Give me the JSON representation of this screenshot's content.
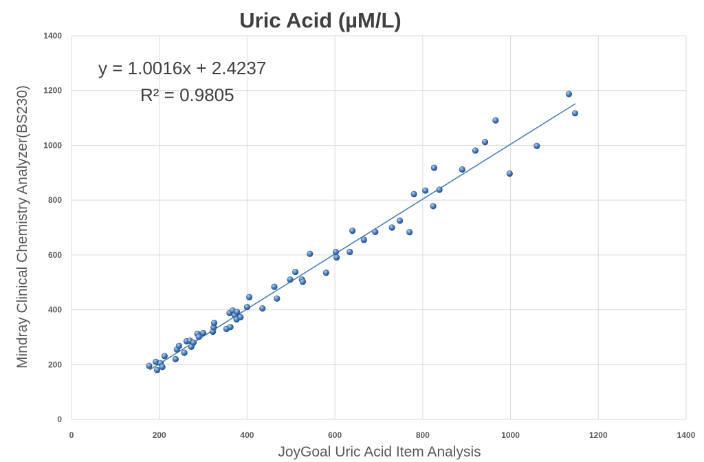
{
  "chart_data": {
    "type": "scatter",
    "title": "Uric Acid (µM/L)",
    "xlabel": "JoyGoal Uric Acid Item Analysis",
    "ylabel": "Mindray Clinical Chemistry Analyzer(BS230)",
    "xlim": [
      0,
      1400
    ],
    "ylim": [
      0,
      1400
    ],
    "x_ticks": [
      "0",
      "200",
      "400",
      "600",
      "800",
      "1000",
      "1200",
      "1400"
    ],
    "y_ticks": [
      "0",
      "200",
      "400",
      "600",
      "800",
      "1000",
      "1200",
      "1400"
    ],
    "grid": true,
    "legend": "none",
    "point_color": "#4f81bd",
    "trendline": {
      "equation": "y = 1.0016x + 2.4237",
      "r_squared": "R² = 0.9805",
      "slope": 1.0016,
      "intercept": 2.4237,
      "x_range": [
        178,
        1148
      ]
    },
    "points": [
      {
        "x": 177,
        "y": 195
      },
      {
        "x": 192,
        "y": 210
      },
      {
        "x": 195,
        "y": 180
      },
      {
        "x": 203,
        "y": 205
      },
      {
        "x": 207,
        "y": 191
      },
      {
        "x": 212,
        "y": 231
      },
      {
        "x": 237,
        "y": 220
      },
      {
        "x": 240,
        "y": 255
      },
      {
        "x": 245,
        "y": 268
      },
      {
        "x": 257,
        "y": 243
      },
      {
        "x": 262,
        "y": 285
      },
      {
        "x": 270,
        "y": 287
      },
      {
        "x": 273,
        "y": 265
      },
      {
        "x": 278,
        "y": 280
      },
      {
        "x": 287,
        "y": 312
      },
      {
        "x": 290,
        "y": 301
      },
      {
        "x": 300,
        "y": 315
      },
      {
        "x": 322,
        "y": 320
      },
      {
        "x": 324,
        "y": 336
      },
      {
        "x": 325,
        "y": 352
      },
      {
        "x": 353,
        "y": 330
      },
      {
        "x": 360,
        "y": 388
      },
      {
        "x": 362,
        "y": 337
      },
      {
        "x": 367,
        "y": 397
      },
      {
        "x": 372,
        "y": 380
      },
      {
        "x": 376,
        "y": 365
      },
      {
        "x": 377,
        "y": 392
      },
      {
        "x": 385,
        "y": 373
      },
      {
        "x": 400,
        "y": 410
      },
      {
        "x": 405,
        "y": 446
      },
      {
        "x": 435,
        "y": 405
      },
      {
        "x": 462,
        "y": 484
      },
      {
        "x": 468,
        "y": 441
      },
      {
        "x": 498,
        "y": 510
      },
      {
        "x": 510,
        "y": 538
      },
      {
        "x": 525,
        "y": 510
      },
      {
        "x": 527,
        "y": 502
      },
      {
        "x": 543,
        "y": 604
      },
      {
        "x": 580,
        "y": 535
      },
      {
        "x": 602,
        "y": 611
      },
      {
        "x": 604,
        "y": 591
      },
      {
        "x": 634,
        "y": 611
      },
      {
        "x": 640,
        "y": 688
      },
      {
        "x": 666,
        "y": 655
      },
      {
        "x": 692,
        "y": 684
      },
      {
        "x": 730,
        "y": 700
      },
      {
        "x": 748,
        "y": 725
      },
      {
        "x": 770,
        "y": 683
      },
      {
        "x": 780,
        "y": 822
      },
      {
        "x": 806,
        "y": 835
      },
      {
        "x": 824,
        "y": 778
      },
      {
        "x": 826,
        "y": 918
      },
      {
        "x": 838,
        "y": 838
      },
      {
        "x": 890,
        "y": 912
      },
      {
        "x": 920,
        "y": 981
      },
      {
        "x": 942,
        "y": 1012
      },
      {
        "x": 966,
        "y": 1091
      },
      {
        "x": 998,
        "y": 897
      },
      {
        "x": 1060,
        "y": 998
      },
      {
        "x": 1133,
        "y": 1187
      },
      {
        "x": 1147,
        "y": 1117
      }
    ]
  }
}
